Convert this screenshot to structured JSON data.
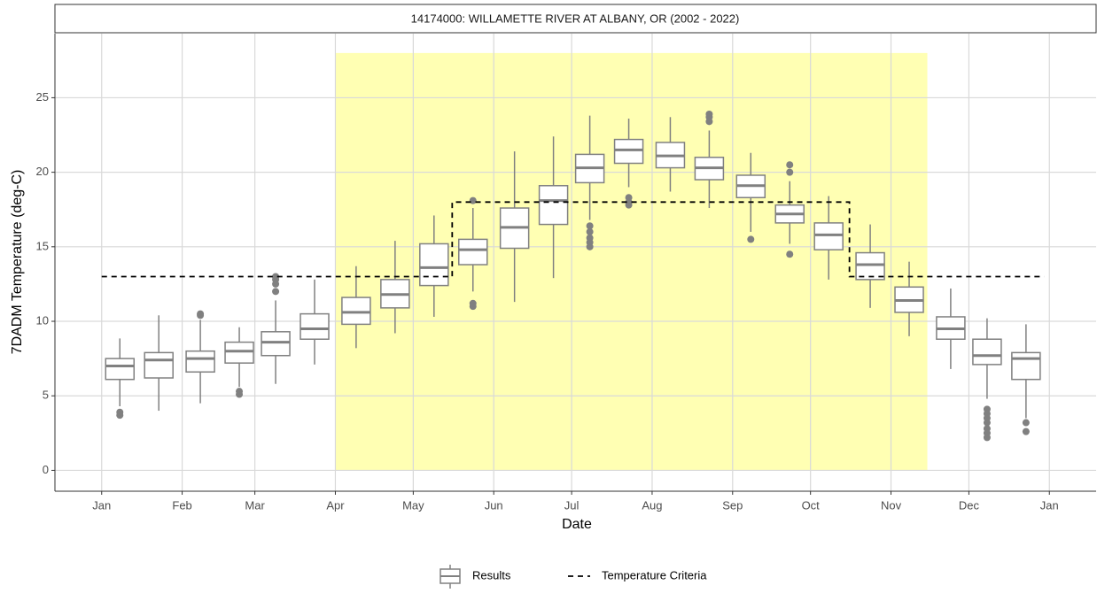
{
  "chart_data": {
    "type": "box",
    "title": "14174000: WILLAMETTE RIVER AT ALBANY, OR (2002 - 2022)",
    "x_label": "Date",
    "y_label": "7DADM Temperature (deg-C)",
    "xlim": [
      -18,
      383
    ],
    "ylim": [
      -1.4,
      29.3
    ],
    "xticks": [
      {
        "value": 0,
        "label": "Jan"
      },
      {
        "value": 31,
        "label": "Feb"
      },
      {
        "value": 59,
        "label": "Mar"
      },
      {
        "value": 90,
        "label": "Apr"
      },
      {
        "value": 120,
        "label": "May"
      },
      {
        "value": 151,
        "label": "Jun"
      },
      {
        "value": 181,
        "label": "Jul"
      },
      {
        "value": 212,
        "label": "Aug"
      },
      {
        "value": 243,
        "label": "Sep"
      },
      {
        "value": 273,
        "label": "Oct"
      },
      {
        "value": 304,
        "label": "Nov"
      },
      {
        "value": 334,
        "label": "Dec"
      },
      {
        "value": 365,
        "label": "Jan"
      }
    ],
    "yticks": [
      0,
      5,
      10,
      15,
      20,
      25
    ],
    "grid": true,
    "highlight": {
      "x": [
        90,
        318
      ],
      "y": [
        0,
        28
      ],
      "color": "#ffffb3"
    },
    "series": [
      {
        "name": "Results",
        "color": "#808080",
        "boxes": [
          {
            "x": 7,
            "low": 4.3,
            "q1": 6.1,
            "median": 7.0,
            "q3": 7.5,
            "high": 8.85,
            "outliers": [
              3.7,
              3.9
            ]
          },
          {
            "x": 22,
            "low": 4.0,
            "q1": 6.2,
            "median": 7.4,
            "q3": 7.9,
            "high": 10.4,
            "outliers": []
          },
          {
            "x": 38,
            "low": 4.5,
            "q1": 6.6,
            "median": 7.5,
            "q3": 8.0,
            "high": 10.1,
            "outliers": [
              10.4,
              10.5
            ]
          },
          {
            "x": 53,
            "low": 5.6,
            "q1": 7.2,
            "median": 8.0,
            "q3": 8.6,
            "high": 9.6,
            "outliers": [
              5.1,
              5.3
            ]
          },
          {
            "x": 67,
            "low": 5.8,
            "q1": 7.7,
            "median": 8.6,
            "q3": 9.3,
            "high": 11.4,
            "outliers": [
              12.0,
              12.5,
              12.8,
              13.0
            ]
          },
          {
            "x": 82,
            "low": 7.1,
            "q1": 8.8,
            "median": 9.5,
            "q3": 10.5,
            "high": 12.8,
            "outliers": []
          },
          {
            "x": 98,
            "low": 8.2,
            "q1": 9.8,
            "median": 10.6,
            "q3": 11.6,
            "high": 13.7,
            "outliers": []
          },
          {
            "x": 113,
            "low": 9.2,
            "q1": 10.9,
            "median": 11.8,
            "q3": 12.8,
            "high": 15.4,
            "outliers": []
          },
          {
            "x": 128,
            "low": 10.3,
            "q1": 12.4,
            "median": 13.6,
            "q3": 15.2,
            "high": 17.1,
            "outliers": []
          },
          {
            "x": 143,
            "low": 12.0,
            "q1": 13.8,
            "median": 14.8,
            "q3": 15.5,
            "high": 17.6,
            "outliers": [
              11.0,
              11.2,
              18.1
            ]
          },
          {
            "x": 159,
            "low": 11.3,
            "q1": 14.9,
            "median": 16.3,
            "q3": 17.6,
            "high": 21.4,
            "outliers": []
          },
          {
            "x": 174,
            "low": 12.9,
            "q1": 16.5,
            "median": 18.1,
            "q3": 19.1,
            "high": 22.4,
            "outliers": []
          },
          {
            "x": 188,
            "low": 16.8,
            "q1": 19.3,
            "median": 20.3,
            "q3": 21.2,
            "high": 23.8,
            "outliers": [
              15.0,
              15.3,
              15.6,
              16.0,
              16.4
            ]
          },
          {
            "x": 203,
            "low": 19.0,
            "q1": 20.6,
            "median": 21.5,
            "q3": 22.2,
            "high": 23.6,
            "outliers": [
              17.8,
              18.0,
              18.3
            ]
          },
          {
            "x": 219,
            "low": 18.7,
            "q1": 20.3,
            "median": 21.1,
            "q3": 22.0,
            "high": 23.7,
            "outliers": []
          },
          {
            "x": 234,
            "low": 17.6,
            "q1": 19.5,
            "median": 20.3,
            "q3": 21.0,
            "high": 22.8,
            "outliers": [
              23.4,
              23.7,
              23.9
            ]
          },
          {
            "x": 250,
            "low": 16.0,
            "q1": 18.3,
            "median": 19.1,
            "q3": 19.8,
            "high": 21.3,
            "outliers": [
              15.5
            ]
          },
          {
            "x": 265,
            "low": 15.2,
            "q1": 16.6,
            "median": 17.2,
            "q3": 17.8,
            "high": 19.4,
            "outliers": [
              14.5,
              20.0,
              20.5
            ]
          },
          {
            "x": 280,
            "low": 12.8,
            "q1": 14.8,
            "median": 15.8,
            "q3": 16.6,
            "high": 18.4,
            "outliers": []
          },
          {
            "x": 296,
            "low": 10.9,
            "q1": 12.8,
            "median": 13.8,
            "q3": 14.6,
            "high": 16.5,
            "outliers": []
          },
          {
            "x": 311,
            "low": 9.0,
            "q1": 10.6,
            "median": 11.4,
            "q3": 12.3,
            "high": 14.0,
            "outliers": []
          },
          {
            "x": 327,
            "low": 6.8,
            "q1": 8.8,
            "median": 9.5,
            "q3": 10.3,
            "high": 12.2,
            "outliers": []
          },
          {
            "x": 341,
            "low": 4.8,
            "q1": 7.1,
            "median": 7.7,
            "q3": 8.8,
            "high": 10.2,
            "outliers": [
              2.2,
              2.5,
              2.8,
              3.2,
              3.5,
              3.8,
              4.1
            ]
          },
          {
            "x": 356,
            "low": 3.5,
            "q1": 6.1,
            "median": 7.5,
            "q3": 7.9,
            "high": 9.8,
            "outliers": [
              2.6,
              3.2
            ]
          }
        ]
      },
      {
        "name": "Temperature Criteria",
        "color": "#000000",
        "x": [
          0,
          135,
          135,
          288,
          288,
          363
        ],
        "values": [
          13,
          13,
          18,
          18,
          13,
          13
        ]
      }
    ]
  }
}
